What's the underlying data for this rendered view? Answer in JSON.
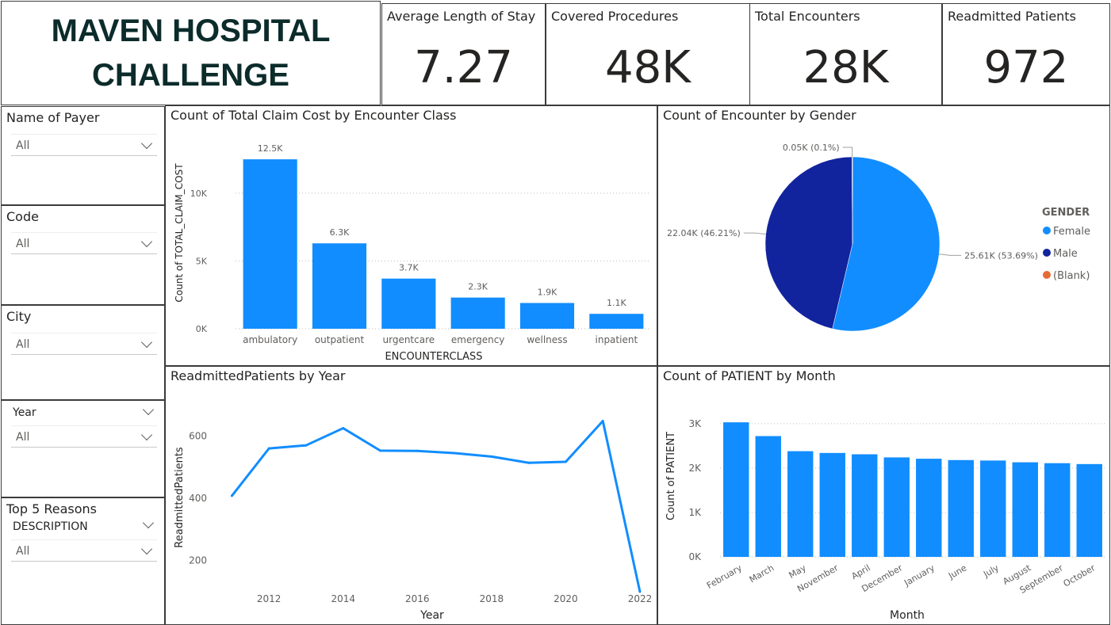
{
  "header": {
    "title_line1": "MAVEN HOSPITAL",
    "title_line2": "CHALLENGE"
  },
  "kpis": [
    {
      "label": "Average Length of Stay",
      "value": "7.27"
    },
    {
      "label": "Covered Procedures",
      "value": "48K"
    },
    {
      "label": "Total Encounters",
      "value": "28K"
    },
    {
      "label": "Readmitted Patients",
      "value": "972"
    }
  ],
  "slicers": {
    "payer": {
      "title": "Name of Payer",
      "value": "All"
    },
    "code": {
      "title": "Code",
      "value": "All"
    },
    "city": {
      "title": "City",
      "value": "All"
    },
    "year": {
      "field": "Year",
      "value": "All"
    },
    "reasons": {
      "title": "Top 5 Reasons",
      "field": "DESCRIPTION",
      "value": "All"
    }
  },
  "colors": {
    "primary": "#118dff",
    "dark": "#12239e",
    "blank": "#e66c37",
    "gridline": "#bdbdbd",
    "border": "#3b3b3b"
  },
  "chart_data": [
    {
      "id": "claims",
      "type": "bar",
      "title": "Count of Total Claim Cost by Encounter Class",
      "xlabel": "ENCOUNTERCLASS",
      "ylabel": "Count of TOTAL_CLAIM_COST",
      "categories": [
        "ambulatory",
        "outpatient",
        "urgentcare",
        "emergency",
        "wellness",
        "inpatient"
      ],
      "values": [
        12500,
        6300,
        3700,
        2300,
        1900,
        1100
      ],
      "data_labels": [
        "12.5K",
        "6.3K",
        "3.7K",
        "2.3K",
        "1.9K",
        "1.1K"
      ],
      "yticks": [
        "0K",
        "5K",
        "10K"
      ],
      "ylim": [
        0,
        13500
      ]
    },
    {
      "id": "gender",
      "type": "pie",
      "title": "Count of Encounter by Gender",
      "legend_title": "GENDER",
      "legend_position": "right",
      "slices": [
        {
          "name": "Female",
          "value": 25610,
          "label": "25.61K (53.69%)",
          "color": "#118dff"
        },
        {
          "name": "Male",
          "value": 22040,
          "label": "22.04K (46.21%)",
          "color": "#12239e"
        },
        {
          "name": "(Blank)",
          "value": 50,
          "label": "0.05K (0.1%)",
          "color": "#e66c37"
        }
      ]
    },
    {
      "id": "readmit",
      "type": "line",
      "title": "ReadmittedPatients by Year",
      "xlabel": "Year",
      "ylabel": "ReadmittedPatients",
      "x": [
        2011,
        2012,
        2013,
        2014,
        2015,
        2016,
        2017,
        2018,
        2019,
        2020,
        2021,
        2022
      ],
      "values": [
        408,
        560,
        570,
        625,
        553,
        552,
        545,
        534,
        514,
        517,
        648,
        100
      ],
      "xticks": [
        "2012",
        "2014",
        "2016",
        "2018",
        "2020",
        "2022"
      ],
      "yticks": [
        "200",
        "400",
        "600"
      ],
      "xlim": [
        2010.5,
        2022.3
      ],
      "ylim": [
        95,
        690
      ]
    },
    {
      "id": "patients",
      "type": "bar",
      "title": "Count of PATIENT by Month",
      "xlabel": "Month",
      "ylabel": "Count of PATIENT",
      "categories": [
        "February",
        "March",
        "May",
        "November",
        "April",
        "December",
        "January",
        "June",
        "July",
        "August",
        "September",
        "October"
      ],
      "values": [
        3030,
        2720,
        2380,
        2340,
        2310,
        2240,
        2210,
        2180,
        2170,
        2130,
        2110,
        2090
      ],
      "yticks": [
        "0K",
        "1K",
        "2K",
        "3K"
      ],
      "ylim": [
        0,
        3300
      ]
    }
  ]
}
